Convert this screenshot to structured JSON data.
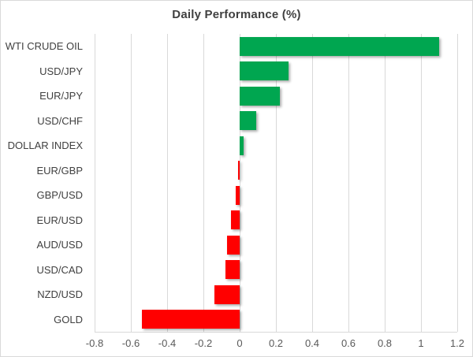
{
  "chart_data": {
    "type": "bar",
    "orientation": "horizontal",
    "title": "Daily Performance (%)",
    "categories": [
      "WTI CRUDE OIL",
      "USD/JPY",
      "EUR/JPY",
      "USD/CHF",
      "DOLLAR INDEX",
      "EUR/GBP",
      "GBP/USD",
      "EUR/USD",
      "AUD/USD",
      "USD/CAD",
      "NZD/USD",
      "GOLD"
    ],
    "values": [
      1.1,
      0.27,
      0.22,
      0.09,
      0.02,
      -0.01,
      -0.02,
      -0.05,
      -0.07,
      -0.08,
      -0.14,
      -0.54
    ],
    "xlabel": "",
    "ylabel": "",
    "xlim": [
      -0.8,
      1.2
    ],
    "x_ticks": [
      {
        "value": -0.8,
        "label": "-0.8"
      },
      {
        "value": -0.6,
        "label": "-0.6"
      },
      {
        "value": -0.4,
        "label": "-0.4"
      },
      {
        "value": -0.2,
        "label": "-0.2"
      },
      {
        "value": 0,
        "label": "0"
      },
      {
        "value": 0.2,
        "label": "0.2"
      },
      {
        "value": 0.4,
        "label": "0.4"
      },
      {
        "value": 0.6,
        "label": "0.6"
      },
      {
        "value": 0.8,
        "label": "0.8"
      },
      {
        "value": 1,
        "label": "1"
      },
      {
        "value": 1.2,
        "label": "1.2"
      }
    ],
    "grid": true,
    "legend": false,
    "colors": {
      "positive_bar": "#00A650",
      "negative_bar": "#FF0000",
      "gridline": "#D9D9D9",
      "axis_line": "#D9D9D9",
      "title_text": "#404040",
      "category_text": "#404040",
      "tick_text": "#595959",
      "background": "#FFFFFF",
      "frame_border": "#D9D9D9"
    }
  }
}
